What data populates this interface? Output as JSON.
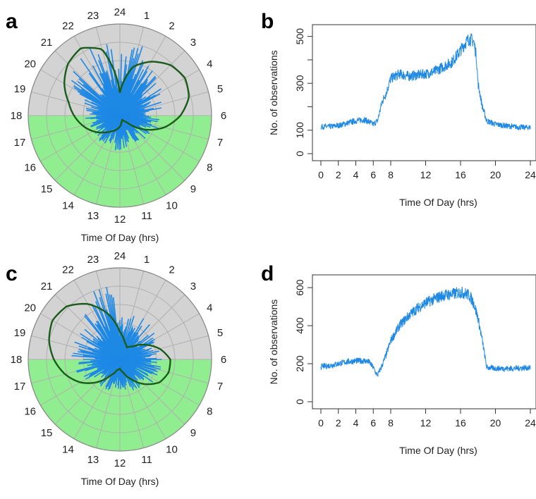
{
  "figure": {
    "panel_labels": [
      "a",
      "b",
      "c",
      "d"
    ]
  },
  "chart_data": [
    {
      "id": "a",
      "type": "polar_bar",
      "xlabel": "Time Of Day (hrs)",
      "hour_labels": [
        "24",
        "1",
        "2",
        "3",
        "4",
        "5",
        "6",
        "7",
        "8",
        "9",
        "10",
        "11",
        "12",
        "13",
        "14",
        "15",
        "16",
        "17",
        "18",
        "19",
        "20",
        "21",
        "22",
        "23"
      ],
      "night_hours": [
        18,
        6
      ],
      "day_hours": [
        6,
        18
      ],
      "colors": {
        "bars": "#1e88e5",
        "day": "#90ee90",
        "night": "#d3d3d3",
        "density": "#1a5c1a",
        "grid": "#b0b0b0"
      },
      "rings": 5,
      "bar_count": 240,
      "density_curve": [
        0.25,
        0.55,
        0.68,
        0.78,
        0.82,
        0.78,
        0.66,
        0.5,
        0.3,
        0.1,
        0.05,
        0.07,
        0.12,
        0.16,
        0.2,
        0.26,
        0.34,
        0.42,
        0.5,
        0.58,
        0.7,
        0.8,
        0.85,
        0.75,
        0.25
      ],
      "bar_envelope": [
        0.62,
        0.88,
        0.6,
        0.55,
        0.5,
        0.45,
        0.42,
        0.42,
        0.38,
        0.33,
        0.32,
        0.34,
        0.36,
        0.35,
        0.33,
        0.32,
        0.33,
        0.3,
        0.38,
        0.42,
        0.55,
        0.7,
        0.72,
        0.78,
        0.62
      ]
    },
    {
      "id": "b",
      "type": "line",
      "xlabel": "Time Of Day (hrs)",
      "ylabel": "No. of observations",
      "xlim": [
        0,
        24
      ],
      "ylim": [
        0,
        520
      ],
      "xticks": [
        0,
        2,
        4,
        6,
        8,
        12,
        16,
        20,
        24
      ],
      "yticks_major": [
        0,
        100,
        300,
        500
      ],
      "yticks_minor": [
        200,
        400
      ],
      "color": "#1e88e5",
      "x": [
        0,
        1,
        2,
        3,
        4,
        5,
        5.5,
        6,
        6.5,
        7,
        7.5,
        8,
        8.5,
        9,
        10,
        11,
        12,
        13,
        14,
        15,
        16,
        16.5,
        17,
        17.5,
        17.8,
        18,
        18.5,
        19,
        20,
        21,
        22,
        23,
        24
      ],
      "y": [
        115,
        115,
        120,
        130,
        140,
        145,
        135,
        125,
        140,
        220,
        260,
        320,
        330,
        340,
        330,
        335,
        340,
        350,
        370,
        390,
        440,
        470,
        490,
        480,
        420,
        300,
        200,
        140,
        125,
        120,
        115,
        112,
        112
      ]
    },
    {
      "id": "c",
      "type": "polar_bar",
      "xlabel": "Time Of Day (hrs)",
      "hour_labels": [
        "24",
        "1",
        "2",
        "3",
        "4",
        "5",
        "6",
        "7",
        "8",
        "9",
        "10",
        "11",
        "12",
        "13",
        "14",
        "15",
        "16",
        "17",
        "18",
        "19",
        "20",
        "21",
        "22",
        "23"
      ],
      "night_hours": [
        18,
        6
      ],
      "day_hours": [
        6,
        18
      ],
      "colors": {
        "bars": "#1e88e5",
        "day": "#90ee90",
        "night": "#d3d3d3",
        "density": "#1a5c1a",
        "grid": "#b0b0b0"
      },
      "rings": 5,
      "bar_count": 240,
      "density_curve": [
        0.3,
        0.2,
        0.15,
        0.2,
        0.32,
        0.45,
        0.55,
        0.55,
        0.5,
        0.38,
        0.25,
        0.15,
        0.1,
        0.12,
        0.2,
        0.35,
        0.5,
        0.62,
        0.72,
        0.8,
        0.85,
        0.82,
        0.7,
        0.52,
        0.3
      ],
      "bar_envelope": [
        0.55,
        0.48,
        0.5,
        0.45,
        0.42,
        0.4,
        0.42,
        0.45,
        0.45,
        0.4,
        0.35,
        0.33,
        0.32,
        0.33,
        0.34,
        0.35,
        0.4,
        0.45,
        0.5,
        0.52,
        0.5,
        0.55,
        0.6,
        0.85,
        0.55
      ]
    },
    {
      "id": "d",
      "type": "line",
      "xlabel": "Time Of Day (hrs)",
      "ylabel": "No. of observations",
      "xlim": [
        0,
        24
      ],
      "ylim": [
        0,
        630
      ],
      "xticks": [
        0,
        2,
        4,
        6,
        8,
        12,
        16,
        20,
        24
      ],
      "yticks_major": [
        0,
        200,
        400,
        600
      ],
      "yticks_minor": [],
      "color": "#1e88e5",
      "x": [
        0,
        1,
        2,
        3,
        4,
        5,
        5.5,
        6,
        6.3,
        6.5,
        7,
        7.5,
        8,
        9,
        10,
        11,
        12,
        13,
        14,
        15,
        16,
        16.5,
        17,
        17.5,
        18,
        18.5,
        19,
        20,
        21,
        22,
        23,
        24
      ],
      "y": [
        185,
        190,
        200,
        210,
        215,
        215,
        210,
        180,
        150,
        140,
        190,
        250,
        320,
        400,
        450,
        490,
        520,
        540,
        560,
        565,
        575,
        570,
        560,
        520,
        440,
        320,
        180,
        175,
        175,
        175,
        178,
        178
      ]
    }
  ]
}
